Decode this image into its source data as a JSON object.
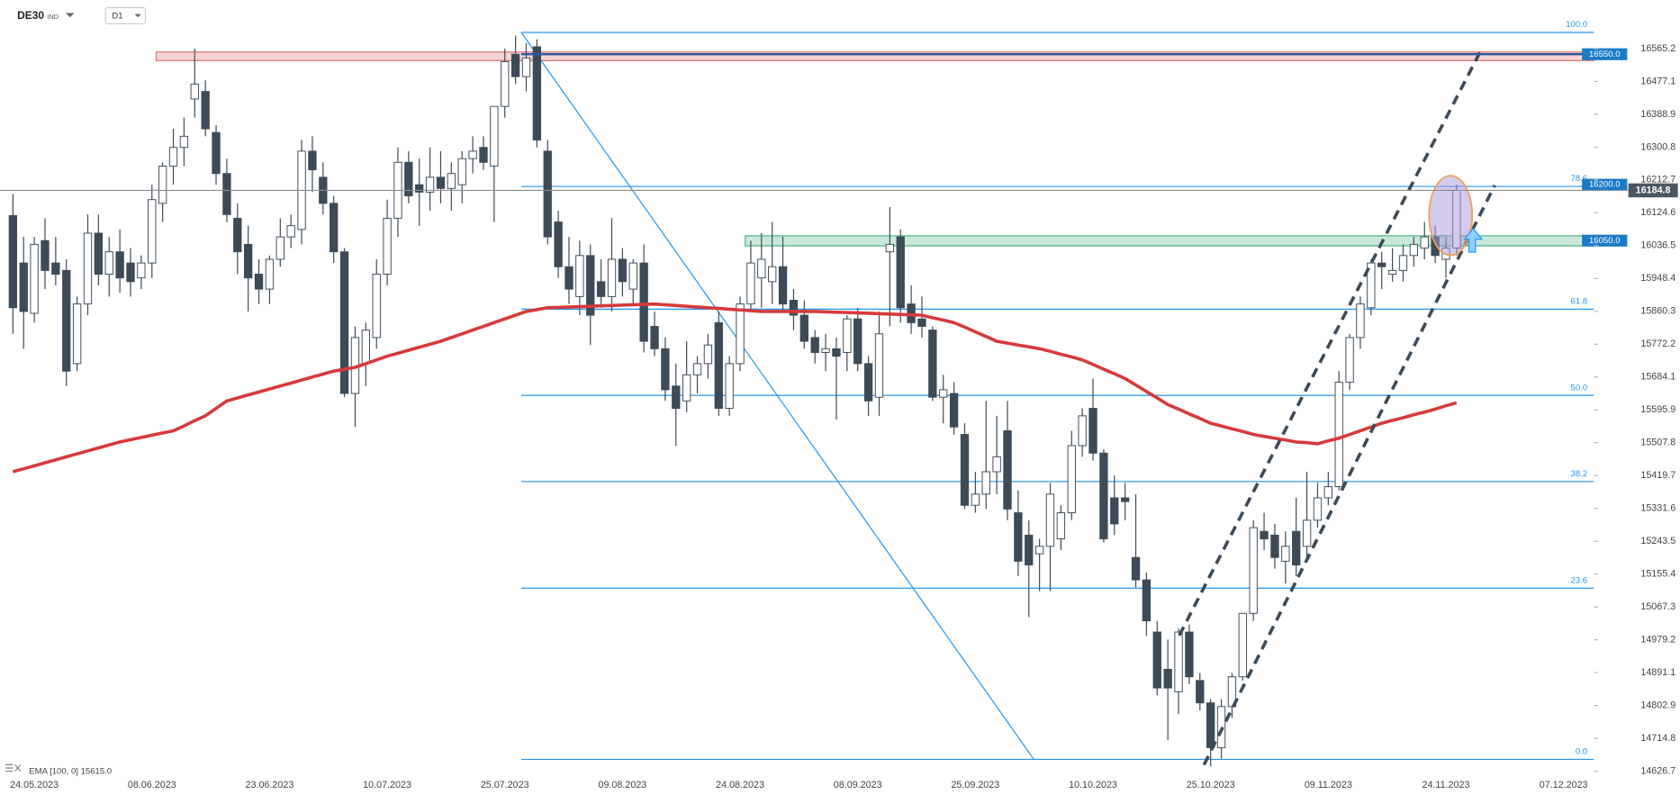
{
  "header": {
    "symbol": "DE30",
    "market": "IND",
    "timeframe": "D1"
  },
  "chart_data": {
    "type": "candlestick",
    "categories": [
      null,
      null,
      "24.05.2023",
      null,
      null,
      null,
      null,
      null,
      null,
      null,
      null,
      null,
      null,
      "08.06.2023",
      null,
      null,
      null,
      null,
      null,
      null,
      null,
      null,
      null,
      null,
      "23.06.2023",
      null,
      null,
      null,
      null,
      null,
      null,
      null,
      null,
      null,
      null,
      "10.07.2023",
      null,
      null,
      null,
      null,
      null,
      null,
      null,
      null,
      null,
      null,
      "25.07.2023",
      null,
      null,
      null,
      null,
      null,
      null,
      null,
      null,
      null,
      null,
      "09.08.2023",
      null,
      null,
      null,
      null,
      null,
      null,
      null,
      null,
      null,
      null,
      "24.08.2023",
      null,
      null,
      null,
      null,
      null,
      null,
      null,
      null,
      null,
      null,
      "08.09.2023",
      null,
      null,
      null,
      null,
      null,
      null,
      null,
      null,
      null,
      null,
      "25.09.2023",
      null,
      null,
      null,
      null,
      null,
      null,
      null,
      null,
      null,
      null,
      "10.10.2023",
      null,
      null,
      null,
      null,
      null,
      null,
      null,
      null,
      null,
      null,
      "25.10.2023",
      null,
      null,
      null,
      null,
      null,
      null,
      null,
      null,
      null,
      null,
      "09.11.2023",
      null,
      null,
      null,
      null,
      null,
      null,
      null,
      null,
      null,
      null,
      "24.11.2023",
      null,
      null,
      null,
      null,
      null,
      null,
      null,
      null,
      null,
      null,
      "07.12.2023"
    ],
    "open": [
      16117,
      15990,
      15855,
      16050,
      15990,
      15970,
      15720,
      15880,
      16070,
      15960,
      16020,
      15990,
      15950,
      15990,
      16150,
      16250,
      16300,
      16430,
      16450,
      16340,
      16230,
      16110,
      16040,
      15960,
      15920,
      16000,
      16060,
      16080,
      16290,
      16220,
      16150,
      16020,
      15640,
      15720,
      15790,
      15960,
      16110,
      16260,
      16200,
      16180,
      16220,
      16190,
      16200,
      16270,
      16300,
      16250,
      16410,
      16550,
      16490,
      16570,
      16290,
      16100,
      15980,
      15900,
      16010,
      15940,
      15900,
      16000,
      15920,
      15990,
      15820,
      15760,
      15660,
      15620,
      15690,
      15720,
      15830,
      15600,
      15720,
      15880,
      15950,
      15940,
      15980,
      15890,
      15850,
      15790,
      15750,
      15760,
      15750,
      15840,
      15720,
      15630,
      16020,
      16060,
      15880,
      15840,
      15810,
      15630,
      15640,
      15530,
      15340,
      15370,
      15430,
      15540,
      15320,
      15260,
      15210,
      15230,
      15250,
      15320,
      15500,
      15600,
      15480,
      15360,
      15360,
      15200,
      15140,
      15000,
      14900,
      14840,
      15000,
      14870,
      14810,
      14690,
      14800,
      14880,
      15050,
      15270,
      15260,
      15190,
      15270,
      15230,
      15300,
      15360,
      15390,
      15670,
      15790,
      15870,
      15990,
      15960,
      15970,
      16010,
      16030,
      16060,
      16000,
      16030,
      null,
      null,
      null,
      null,
      null,
      null,
      null,
      null,
      null,
      null
    ],
    "high": [
      16175,
      16060,
      16060,
      16110,
      16060,
      16000,
      15900,
      16120,
      16120,
      16060,
      16080,
      16030,
      16010,
      16200,
      16260,
      16350,
      16380,
      16565,
      16480,
      16360,
      16270,
      16150,
      16090,
      16000,
      16010,
      16110,
      16120,
      16320,
      16330,
      16260,
      16170,
      16030,
      15820,
      15830,
      16000,
      16160,
      16300,
      16290,
      16270,
      16300,
      16290,
      16260,
      16290,
      16330,
      16330,
      16410,
      16565,
      16600,
      16580,
      16590,
      16320,
      16130,
      16060,
      16050,
      16040,
      16000,
      16110,
      16030,
      16000,
      16040,
      15860,
      15790,
      15720,
      15780,
      15740,
      15800,
      15860,
      15740,
      15900,
      16050,
      16070,
      16100,
      16060,
      15920,
      15890,
      15810,
      15800,
      15790,
      15850,
      15870,
      15740,
      15860,
      16140,
      16080,
      15930,
      15900,
      15820,
      15690,
      15670,
      15560,
      15430,
      15620,
      15580,
      15620,
      15380,
      15300,
      15250,
      15400,
      15340,
      15540,
      15600,
      15680,
      15490,
      15420,
      15400,
      15370,
      15160,
      15030,
      14980,
      15010,
      15020,
      14890,
      14820,
      14820,
      14890,
      15050,
      15300,
      15320,
      15290,
      15270,
      15360,
      15430,
      15400,
      15430,
      15700,
      15800,
      15900,
      16000,
      16020,
      16030,
      16040,
      16060,
      16100,
      16090,
      16060,
      16200,
      null,
      null,
      null,
      null,
      null,
      null,
      null,
      null,
      null,
      null
    ],
    "low": [
      15800,
      15760,
      15830,
      15920,
      15930,
      15660,
      15700,
      15850,
      15930,
      15900,
      15910,
      15900,
      15920,
      15950,
      16100,
      16200,
      16250,
      16380,
      16330,
      16200,
      16100,
      15960,
      15860,
      15880,
      15880,
      15980,
      16030,
      16040,
      16180,
      16120,
      15990,
      15630,
      15550,
      15660,
      15760,
      15930,
      16060,
      16150,
      16090,
      16130,
      16150,
      16130,
      16150,
      16230,
      16240,
      16100,
      16380,
      16470,
      16450,
      16300,
      16040,
      15950,
      15880,
      15850,
      15770,
      15870,
      15860,
      15900,
      15880,
      15750,
      15740,
      15620,
      15500,
      15590,
      15640,
      15680,
      15580,
      15580,
      15700,
      15860,
      15870,
      15880,
      15860,
      15810,
      15760,
      15720,
      15700,
      15570,
      15700,
      15700,
      15580,
      15580,
      15820,
      15830,
      15800,
      15790,
      15620,
      15560,
      15530,
      15330,
      15320,
      15330,
      15370,
      15300,
      15150,
      15040,
      15110,
      15110,
      15220,
      15300,
      15470,
      15460,
      15240,
      15260,
      15300,
      15120,
      14990,
      14830,
      14710,
      14780,
      14860,
      14790,
      14640,
      14660,
      14770,
      14870,
      15030,
      15220,
      15170,
      15130,
      15150,
      15200,
      15280,
      15340,
      15380,
      15650,
      15760,
      15850,
      15920,
      15940,
      15940,
      15980,
      16000,
      15990,
      15950,
      16010,
      null,
      null,
      null,
      null,
      null,
      null,
      null,
      null,
      null,
      null
    ],
    "close": [
      15870,
      15860,
      16040,
      15970,
      15960,
      15700,
      15880,
      16070,
      15960,
      16020,
      15950,
      15940,
      15990,
      16160,
      16250,
      16300,
      16330,
      16470,
      16350,
      16230,
      16120,
      16020,
      15950,
      15920,
      16000,
      16060,
      16090,
      16290,
      16240,
      16150,
      16020,
      15640,
      15790,
      15810,
      15960,
      16110,
      16260,
      16170,
      16180,
      16220,
      16190,
      16230,
      16270,
      16290,
      16260,
      16410,
      16530,
      16490,
      16540,
      16320,
      16060,
      15980,
      15920,
      16010,
      15850,
      15900,
      16000,
      15940,
      15990,
      15780,
      15760,
      15650,
      15600,
      15690,
      15720,
      15770,
      15600,
      15720,
      15880,
      15990,
      16000,
      15980,
      15880,
      15850,
      15780,
      15750,
      15760,
      15740,
      15840,
      15720,
      15620,
      15800,
      16040,
      15870,
      15830,
      15820,
      15630,
      15650,
      15550,
      15340,
      15370,
      15430,
      15470,
      15330,
      15190,
      15180,
      15230,
      15370,
      15320,
      15500,
      15580,
      15480,
      15250,
      15290,
      15350,
      15140,
      15030,
      14850,
      14850,
      15000,
      14880,
      14810,
      14690,
      14800,
      14880,
      15050,
      15280,
      15250,
      15200,
      15230,
      15180,
      15300,
      15360,
      15390,
      15670,
      15790,
      15880,
      15990,
      15980,
      15970,
      16010,
      16040,
      16060,
      16010,
      16030,
      16184.8,
      null,
      null,
      null,
      null,
      null,
      null,
      null,
      null,
      null,
      null
    ],
    "up_color": "#ffffff",
    "down_color": "#3d4a57",
    "wick_color": "#3d4a57",
    "ema": {
      "name": "EMA [100, 0]",
      "last_label": "15615.0",
      "color": "#d63a3a",
      "values": [
        15430,
        15438,
        15446,
        15454,
        15462,
        15470,
        15478,
        15486,
        15494,
        15502,
        15510,
        15516,
        15522,
        15528,
        15534,
        15540,
        15553,
        15567,
        15580,
        15600,
        15620,
        15628,
        15636,
        15644,
        15652,
        15660,
        15668,
        15676,
        15684,
        15692,
        15700,
        15705,
        15710,
        15720,
        15730,
        15740,
        15748,
        15756,
        15764,
        15772,
        15780,
        15790,
        15800,
        15810,
        15820,
        15830,
        15840,
        15850,
        15860,
        15865,
        15870,
        15871,
        15872,
        15873,
        15874,
        15875,
        15876,
        15877,
        15878,
        15879,
        15880,
        15878,
        15876,
        15874,
        15872,
        15870,
        15868,
        15866,
        15864,
        15862,
        15860,
        15860,
        15860,
        15860,
        15860,
        15860,
        15859,
        15858,
        15857,
        15856,
        15855,
        15854,
        15853,
        15852,
        15851,
        15850,
        15843,
        15837,
        15830,
        15818,
        15805,
        15793,
        15780,
        15775,
        15770,
        15765,
        15760,
        15753,
        15745,
        15738,
        15730,
        15718,
        15705,
        15693,
        15680,
        15663,
        15645,
        15628,
        15610,
        15598,
        15585,
        15573,
        15560,
        15553,
        15545,
        15538,
        15530,
        15525,
        15520,
        15515,
        15510,
        15508,
        15505,
        15513,
        15520,
        15530,
        15540,
        15550,
        15560,
        15568,
        15575,
        15583,
        15590,
        15598,
        15607,
        15615,
        null,
        null,
        null,
        null,
        null,
        null,
        null,
        null,
        null,
        null
      ]
    },
    "ylim": [
      14609.4,
      16695.2
    ],
    "yticks": [
      16565.2,
      16477.1,
      16388.9,
      16300.8,
      16212.7,
      16124.6,
      16036.5,
      15948.4,
      15860.3,
      15772.2,
      15684.1,
      15595.9,
      15507.8,
      15419.7,
      15331.6,
      15243.5,
      15155.4,
      15067.3,
      14979.2,
      14891.1,
      14802.9,
      14714.8,
      14626.7
    ],
    "fib_levels": [
      {
        "value": 16608.5,
        "label": "100.0"
      },
      {
        "value": 16195.4,
        "label": "78.6"
      },
      {
        "value": 15866.1,
        "label": "61.8"
      },
      {
        "value": 15634.9,
        "label": "50.0"
      },
      {
        "value": 15403.8,
        "label": "38.2"
      },
      {
        "value": 15117.8,
        "label": "23.6"
      },
      {
        "value": 14658.5,
        "label": "0.0"
      }
    ],
    "fib_color": "#2196f3",
    "levels": [
      {
        "value": 16550,
        "label": "16550.0",
        "color": "#1a7cc7",
        "line": true
      },
      {
        "value": 16200,
        "label": "16200.0",
        "color": "#1a7cc7",
        "line": false
      },
      {
        "value": 16050,
        "label": "16050.0",
        "color": "#1a7cc7",
        "line": false
      }
    ],
    "current": {
      "value": 16184.8,
      "label": "16184.8",
      "color": "#4a5763"
    },
    "zones": [
      {
        "from": 16533,
        "to": 16556,
        "color": "#e07070"
      },
      {
        "from": 16036,
        "to": 16063,
        "color": "#4fb384"
      }
    ]
  }
}
